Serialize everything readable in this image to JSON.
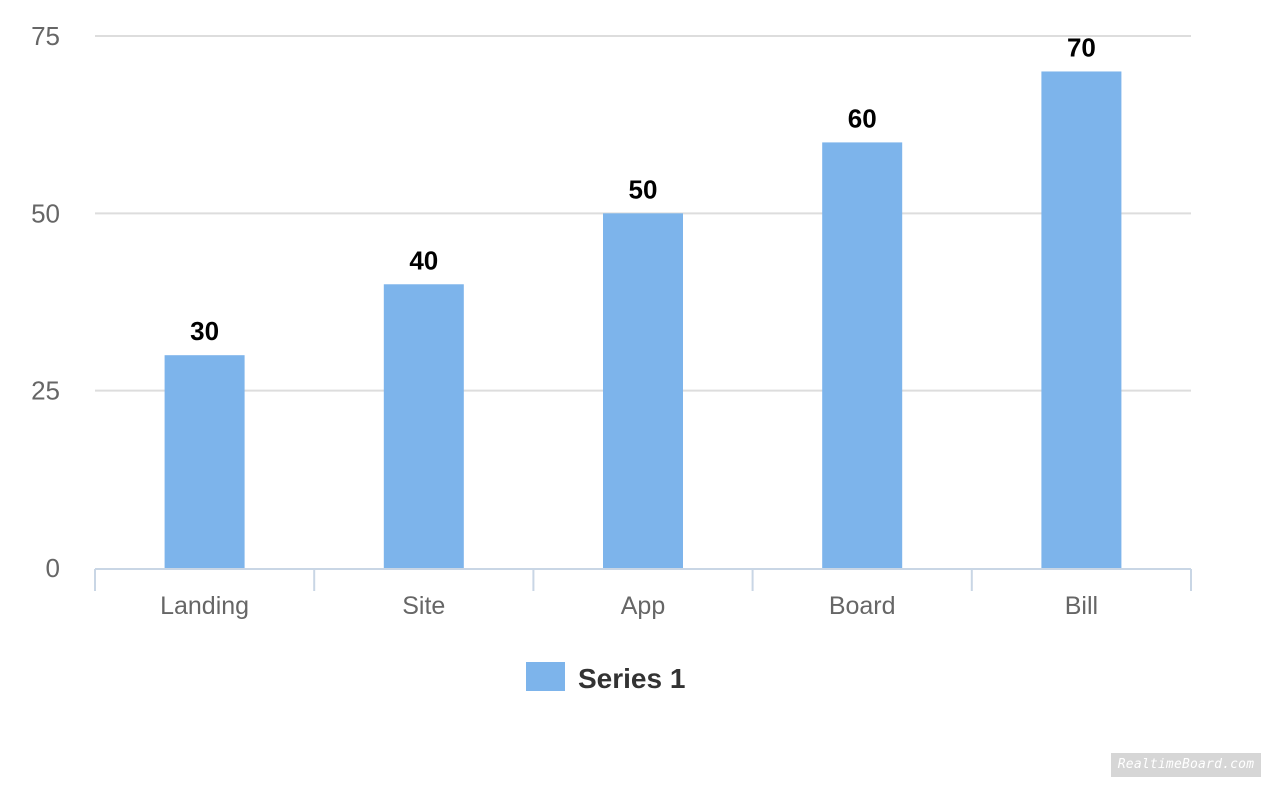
{
  "chart_data": {
    "type": "bar",
    "categories": [
      "Landing",
      "Site",
      "App",
      "Board",
      "Bill"
    ],
    "series": [
      {
        "name": "Series 1",
        "values": [
          30,
          40,
          50,
          60,
          70
        ]
      }
    ],
    "yticks": [
      "0",
      "25",
      "50",
      "75"
    ],
    "ylim": [
      0,
      75
    ],
    "grid": true,
    "legend_position": "bottom-center"
  },
  "colors": {
    "bar": "#7db4eb",
    "grid": "#dddddd",
    "axis": "#c9d6e5",
    "tick_text": "#666666",
    "label_text": "#000000",
    "legend_text": "#333333"
  },
  "watermark": "RealtimeBoard.com"
}
